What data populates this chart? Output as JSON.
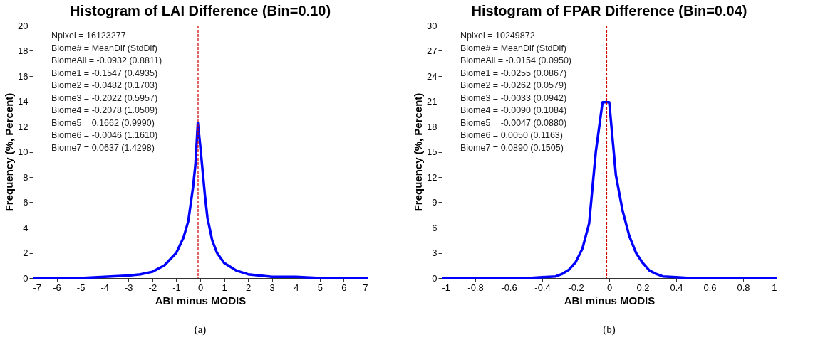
{
  "chart_data": [
    {
      "type": "line",
      "title": "Histogram of LAI Difference (Bin=0.10)",
      "xlabel": "ABI minus MODIS",
      "ylabel": "Frequency (%, Percent)",
      "x": [
        -7,
        -6,
        -5,
        -4,
        -3,
        -2.5,
        -2,
        -1.5,
        -1,
        -0.7,
        -0.5,
        -0.3,
        -0.2,
        -0.1,
        0,
        0.1,
        0.2,
        0.3,
        0.5,
        0.7,
        1,
        1.5,
        2,
        2.5,
        3,
        4,
        5,
        6,
        7
      ],
      "series": [
        {
          "color": "#0000ff",
          "values": [
            0.0,
            0.0,
            0.0,
            0.1,
            0.2,
            0.3,
            0.5,
            1.0,
            2.0,
            3.2,
            4.5,
            7.2,
            9.0,
            12.3,
            10.5,
            8.5,
            6.5,
            4.8,
            3.0,
            2.0,
            1.2,
            0.6,
            0.3,
            0.2,
            0.1,
            0.1,
            0.0,
            0.0,
            0.0
          ]
        }
      ],
      "xlim": [
        -7,
        7
      ],
      "ylim": [
        0,
        20
      ],
      "xticks": [
        -7,
        -6,
        -5,
        -4,
        -3,
        -2,
        -1,
        0,
        1,
        2,
        3,
        4,
        5,
        6,
        7
      ],
      "yticks": [
        0,
        2,
        4,
        6,
        8,
        10,
        12,
        14,
        16,
        18,
        20
      ],
      "ref_lines": [
        {
          "axis": "x",
          "value": -0.09,
          "color": "#cc0000",
          "line_style": "dashed"
        }
      ],
      "grid": false,
      "line_style": "solid",
      "annotations": [
        "Npixel = 16123277",
        "Biome# = MeanDif (StdDif)",
        "BiomeAll = -0.0932 (0.8811)",
        "Biome1 = -0.1547 (0.4935)",
        "Biome2 = -0.0482 (0.1703)",
        "Biome3 = -0.2022 (0.5957)",
        "Biome4 = -0.2078 (1.0509)",
        "Biome5 = 0.1662 (0.9990)",
        "Biome6 = -0.0046 (1.1610)",
        "Biome7 = 0.0637 (1.4298)",
        "(a)"
      ]
    },
    {
      "type": "line",
      "title": "Histogram of FPAR Difference (Bin=0.04)",
      "xlabel": "ABI minus MODIS",
      "ylabel": "Frequency (%, Percent)",
      "x": [
        -1,
        -0.8,
        -0.6,
        -0.48,
        -0.4,
        -0.32,
        -0.28,
        -0.24,
        -0.2,
        -0.16,
        -0.12,
        -0.08,
        -0.04,
        0,
        0.04,
        0.08,
        0.12,
        0.16,
        0.2,
        0.24,
        0.28,
        0.32,
        0.4,
        0.48,
        0.6,
        0.8,
        1
      ],
      "series": [
        {
          "color": "#0000ff",
          "values": [
            0.0,
            0.0,
            0.0,
            0.0,
            0.1,
            0.2,
            0.5,
            1.0,
            1.9,
            3.5,
            6.5,
            15.0,
            20.9,
            20.9,
            12.2,
            8.0,
            5.0,
            3.0,
            1.8,
            0.9,
            0.5,
            0.2,
            0.1,
            0.0,
            0.0,
            0.0,
            0.0
          ]
        }
      ],
      "xlim": [
        -1,
        1
      ],
      "ylim": [
        0,
        30
      ],
      "xticks": [
        -1,
        -0.8,
        -0.6,
        -0.4,
        -0.2,
        0,
        0.2,
        0.4,
        0.6,
        0.8,
        1
      ],
      "yticks": [
        0,
        3,
        6,
        9,
        12,
        15,
        18,
        21,
        24,
        27,
        30
      ],
      "ref_lines": [
        {
          "axis": "x",
          "value": -0.015,
          "color": "#cc0000",
          "line_style": "dashed"
        }
      ],
      "grid": false,
      "line_style": "solid",
      "annotations": [
        "Npixel = 10249872",
        "Biome# = MeanDif (StdDif)",
        "BiomeAll = -0.0154 (0.0950)",
        "Biome1 = -0.0255 (0.0867)",
        "Biome2 = -0.0262 (0.0579)",
        "Biome3 = -0.0033 (0.0942)",
        "Biome4 = -0.0090 (0.1084)",
        "Biome5 = -0.0047 (0.0880)",
        "Biome6 = 0.0050 (0.1163)",
        "Biome7 = 0.0890 (0.1505)",
        "(b)"
      ]
    }
  ]
}
